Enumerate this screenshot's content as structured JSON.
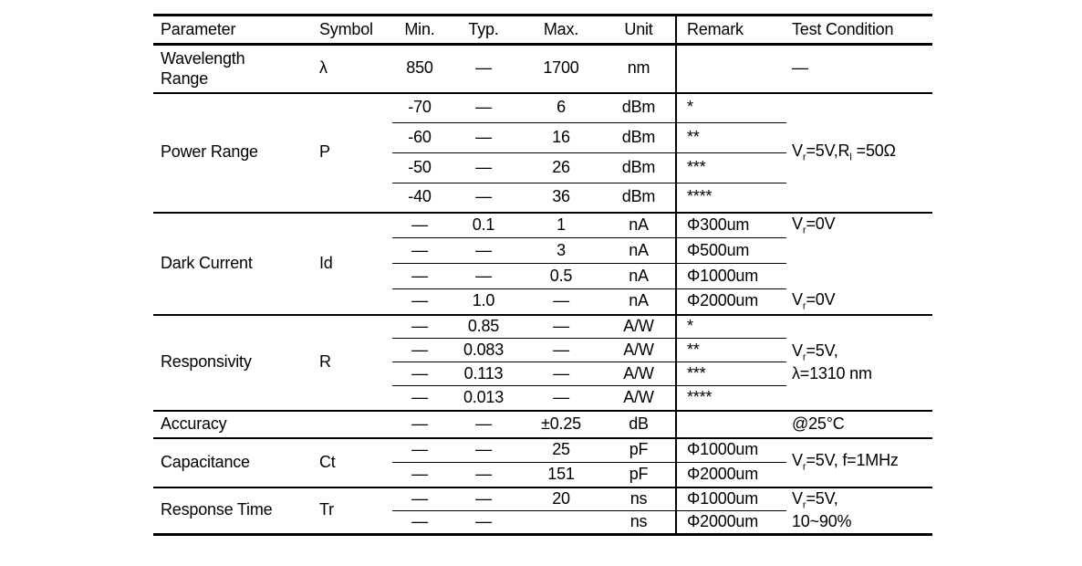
{
  "header": {
    "parameter": "Parameter",
    "symbol": "Symbol",
    "min": "Min.",
    "typ": "Typ.",
    "max": "Max.",
    "unit": "Unit",
    "remark": "Remark",
    "test_condition": "Test Condition"
  },
  "sections": [
    {
      "parameter": "Wavelength Range",
      "symbol": "λ",
      "rows": [
        {
          "min": "850",
          "typ": "—",
          "max": "1700",
          "unit": "nm",
          "remark": "",
          "test": "—"
        }
      ]
    },
    {
      "parameter": "Power Range",
      "symbol": "P",
      "test_line1": "V_r_=5V,R_l_ =50Ω",
      "rows": [
        {
          "min": "-70",
          "typ": "—",
          "max": "6",
          "unit": "dBm",
          "remark": "*"
        },
        {
          "min": "-60",
          "typ": "—",
          "max": "16",
          "unit": "dBm",
          "remark": "**"
        },
        {
          "min": "-50",
          "typ": "—",
          "max": "26",
          "unit": "dBm",
          "remark": "***"
        },
        {
          "min": "-40",
          "typ": "—",
          "max": "36",
          "unit": "dBm",
          "remark": "****"
        }
      ]
    },
    {
      "parameter": "Dark Current",
      "symbol": "Id",
      "rows": [
        {
          "min": "—",
          "typ": "0.1",
          "max": "1",
          "unit": "nA",
          "remark": "Φ300um",
          "test": "V_r_=0V"
        },
        {
          "min": "—",
          "typ": "—",
          "max": "3",
          "unit": "nA",
          "remark": "Φ500um",
          "test": ""
        },
        {
          "min": "—",
          "typ": "—",
          "max": "0.5",
          "unit": "nA",
          "remark": "Φ1000um",
          "test": ""
        },
        {
          "min": "—",
          "typ": "1.0",
          "max": "—",
          "unit": "nA",
          "remark": "Φ2000um",
          "test": "V_r_=0V"
        }
      ]
    },
    {
      "parameter": "Responsivity",
      "symbol": "R",
      "test_line1": "V_r_=5V,",
      "test_line2": "λ=1310 nm",
      "rows": [
        {
          "min": "—",
          "typ": "0.85",
          "max": "—",
          "unit": "A/W",
          "remark": "*"
        },
        {
          "min": "—",
          "typ": "0.083",
          "max": "—",
          "unit": "A/W",
          "remark": "**"
        },
        {
          "min": "—",
          "typ": "0.113",
          "max": "—",
          "unit": "A/W",
          "remark": "***"
        },
        {
          "min": "—",
          "typ": "0.013",
          "max": "—",
          "unit": "A/W",
          "remark": "****"
        }
      ]
    },
    {
      "parameter": "Accuracy",
      "symbol": "",
      "rows": [
        {
          "min": "—",
          "typ": "—",
          "max": "±0.25",
          "unit": "dB",
          "remark": "",
          "test": "@25°C"
        }
      ]
    },
    {
      "parameter": "Capacitance",
      "symbol": "Ct",
      "test_line1": "V_r_=5V, f=1MHz",
      "rows": [
        {
          "min": "—",
          "typ": "—",
          "max": "25",
          "unit": "pF",
          "remark": "Φ1000um"
        },
        {
          "min": "—",
          "typ": "—",
          "max": "151",
          "unit": "pF",
          "remark": "Φ2000um"
        }
      ]
    },
    {
      "parameter": "Response Time",
      "symbol": "Tr",
      "test_line1": "V_r_=5V,",
      "test_line2": "10~90%",
      "rows": [
        {
          "min": "—",
          "typ": "—",
          "max": "20",
          "unit": "ns",
          "remark": "Φ1000um"
        },
        {
          "min": "—",
          "typ": "—",
          "max": "",
          "unit": "ns",
          "remark": "Φ2000um"
        }
      ]
    }
  ]
}
